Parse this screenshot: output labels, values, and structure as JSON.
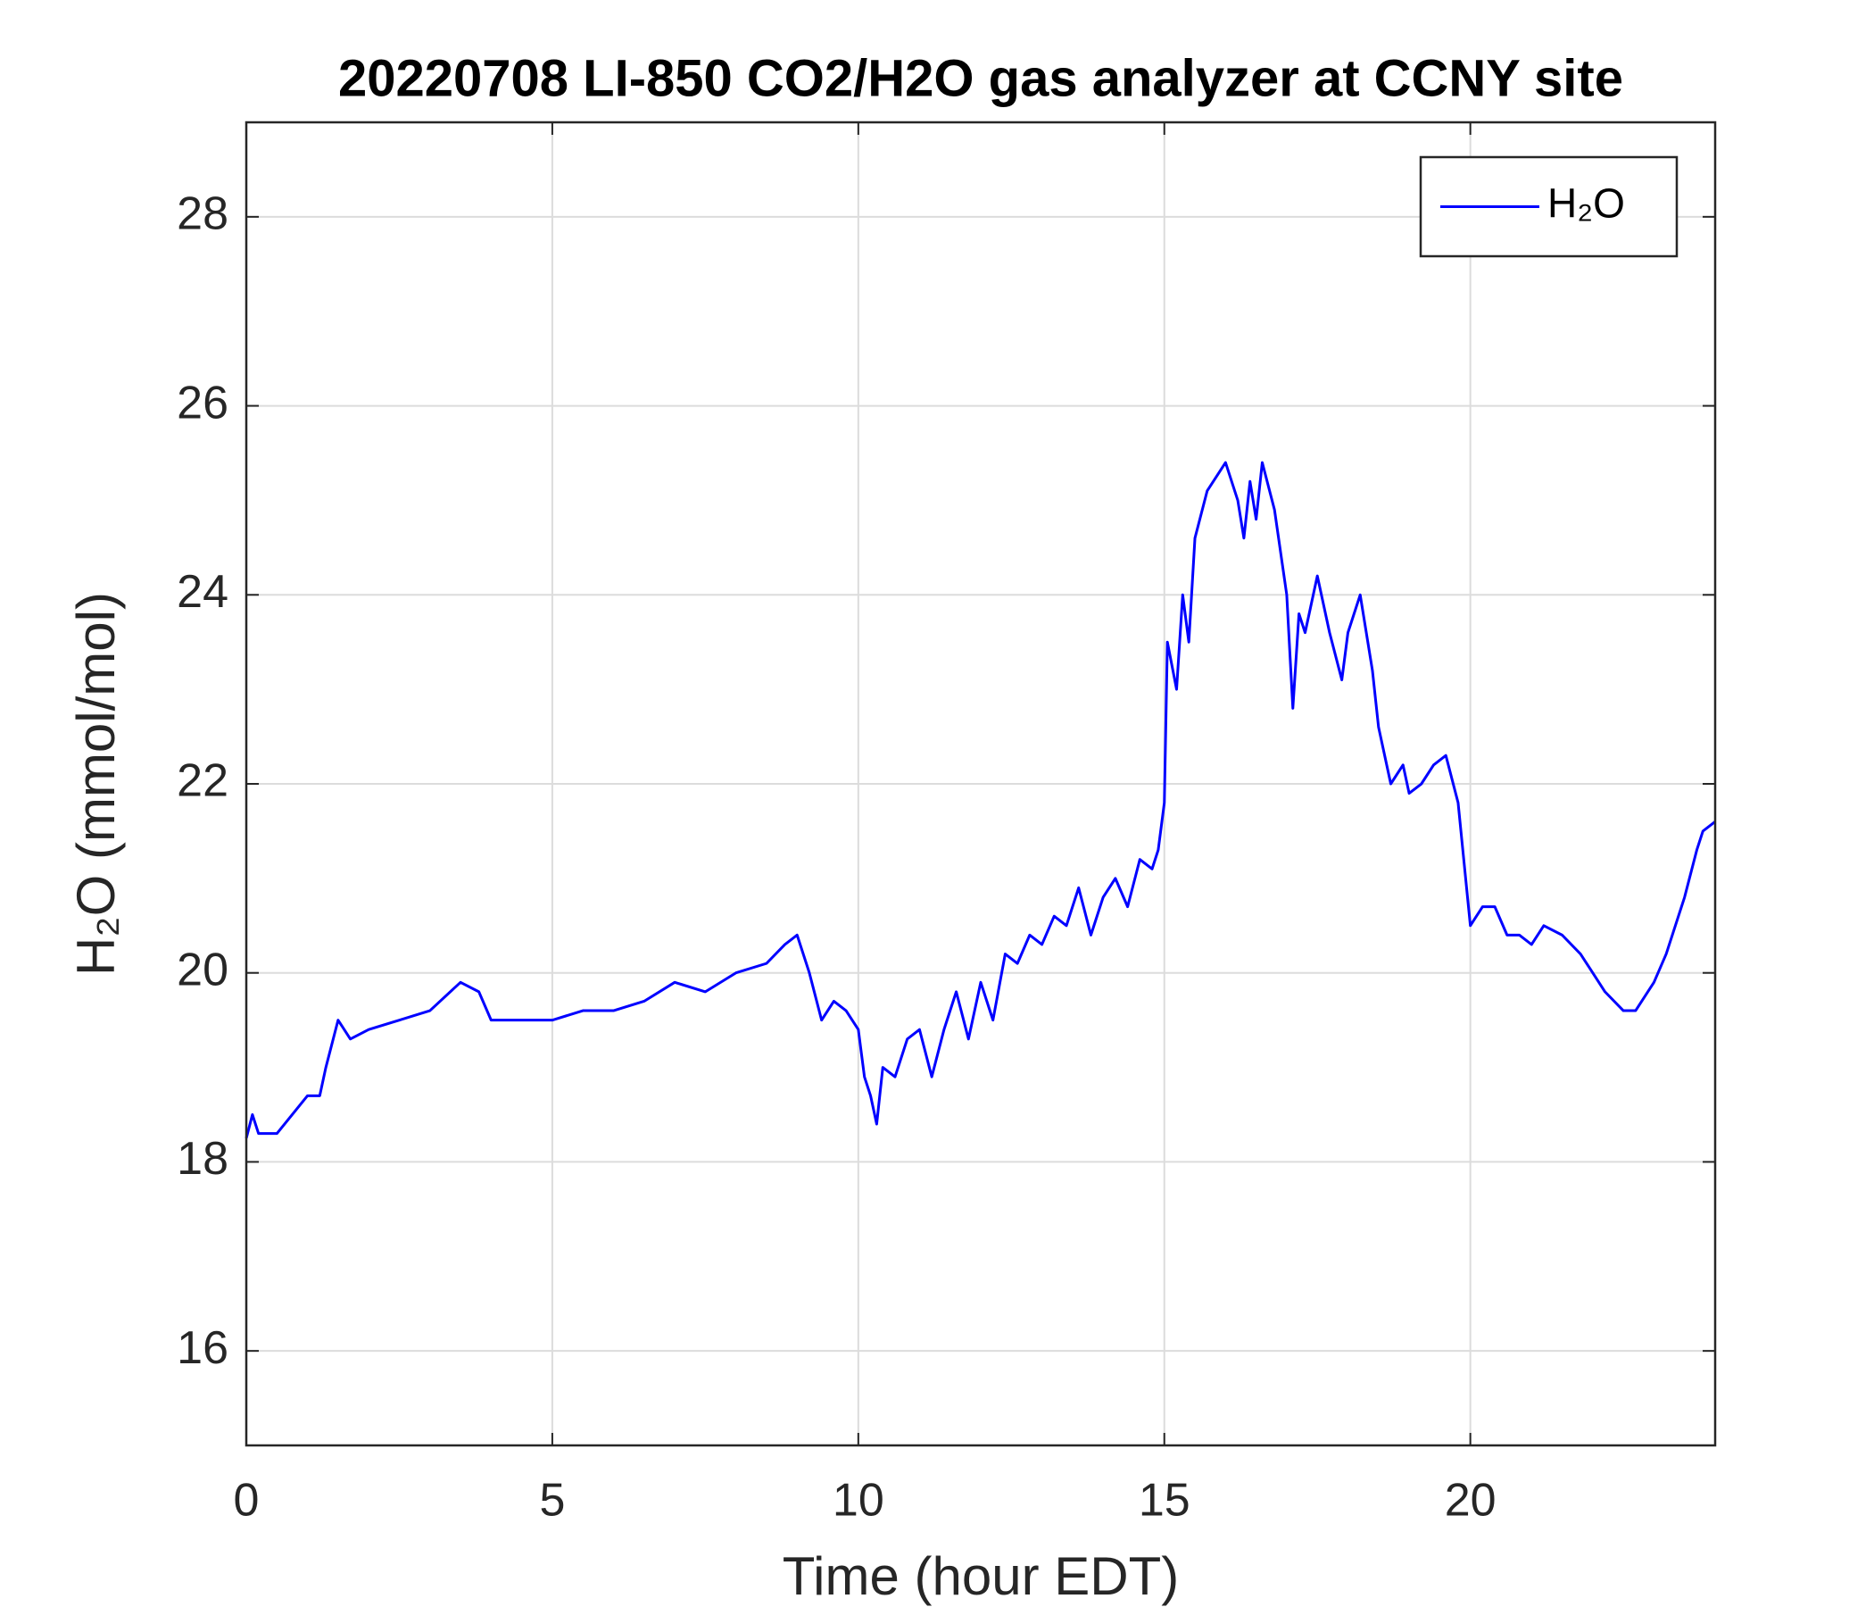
{
  "chart_data": {
    "type": "line",
    "title": "20220708 LI-850 CO2/H2O gas analyzer at CCNY site",
    "xlabel": "Time (hour EDT)",
    "ylabel": "H₂O (mmol/mol)",
    "xlim": [
      0,
      24
    ],
    "xticks": [
      0,
      5,
      10,
      15,
      20
    ],
    "ylim": [
      15,
      29
    ],
    "yticks": [
      16,
      18,
      20,
      22,
      24,
      26,
      28
    ],
    "grid": true,
    "legend": "northeast",
    "series": [
      {
        "name": "H₂O",
        "color": "#0000ff",
        "x": [
          0,
          0.1,
          0.2,
          0.5,
          1.0,
          1.2,
          1.3,
          1.5,
          1.7,
          2.0,
          2.5,
          3.0,
          3.5,
          3.8,
          4.0,
          4.5,
          5.0,
          5.5,
          6.0,
          6.5,
          7.0,
          7.5,
          8.0,
          8.5,
          8.8,
          9.0,
          9.2,
          9.4,
          9.6,
          9.8,
          10.0,
          10.1,
          10.2,
          10.3,
          10.4,
          10.6,
          10.8,
          11.0,
          11.2,
          11.4,
          11.6,
          11.8,
          12.0,
          12.2,
          12.4,
          12.6,
          12.8,
          13.0,
          13.2,
          13.4,
          13.6,
          13.8,
          14.0,
          14.2,
          14.4,
          14.6,
          14.8,
          14.9,
          15.0,
          15.05,
          15.2,
          15.3,
          15.4,
          15.5,
          15.7,
          15.9,
          16.0,
          16.2,
          16.3,
          16.4,
          16.5,
          16.6,
          16.8,
          17.0,
          17.1,
          17.2,
          17.3,
          17.5,
          17.7,
          17.9,
          18.0,
          18.2,
          18.4,
          18.5,
          18.7,
          18.9,
          19.0,
          19.2,
          19.4,
          19.6,
          19.8,
          20.0,
          20.2,
          20.4,
          20.6,
          20.8,
          21.0,
          21.2,
          21.5,
          21.8,
          22.0,
          22.2,
          22.5,
          22.7,
          23.0,
          23.2,
          23.5,
          23.7,
          23.8,
          24.0
        ],
        "values": [
          18.25,
          18.5,
          18.3,
          18.3,
          18.7,
          18.7,
          19.0,
          19.5,
          19.3,
          19.4,
          19.5,
          19.6,
          19.9,
          19.8,
          19.5,
          19.5,
          19.5,
          19.6,
          19.6,
          19.7,
          19.9,
          19.8,
          20.0,
          20.1,
          20.3,
          20.4,
          20.0,
          19.5,
          19.7,
          19.6,
          19.4,
          18.9,
          18.7,
          18.4,
          19.0,
          18.9,
          19.3,
          19.4,
          18.9,
          19.4,
          19.8,
          19.3,
          19.9,
          19.5,
          20.2,
          20.1,
          20.4,
          20.3,
          20.6,
          20.5,
          20.9,
          20.4,
          20.8,
          21.0,
          20.7,
          21.2,
          21.1,
          21.3,
          21.8,
          23.5,
          23.0,
          24.0,
          23.5,
          24.6,
          25.1,
          25.3,
          25.4,
          25.0,
          24.6,
          25.2,
          24.8,
          25.4,
          24.9,
          24.0,
          22.8,
          23.8,
          23.6,
          24.2,
          23.6,
          23.1,
          23.6,
          24.0,
          23.2,
          22.6,
          22.0,
          22.2,
          21.9,
          22.0,
          22.2,
          22.3,
          21.8,
          20.5,
          20.7,
          20.7,
          20.4,
          20.4,
          20.3,
          20.5,
          20.4,
          20.2,
          20.0,
          19.8,
          19.6,
          19.6,
          19.9,
          20.2,
          20.8,
          21.3,
          21.5,
          21.6
        ]
      }
    ]
  }
}
